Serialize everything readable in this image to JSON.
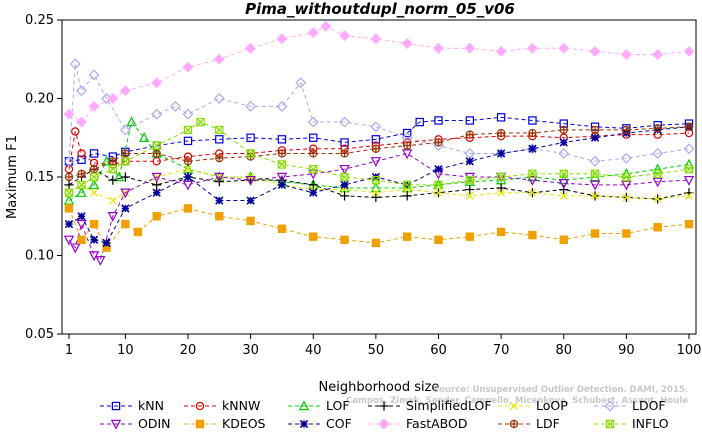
{
  "chart_data": {
    "type": "line",
    "title": "Pima_withoutdupl_norm_05_v06",
    "xlabel": "Neighborhood size",
    "ylabel": "Maximum F1",
    "xlim": [
      1,
      100
    ],
    "ylim": [
      0.05,
      0.25
    ],
    "xticks": [
      "1",
      "10",
      "20",
      "30",
      "40",
      "50",
      "60",
      "70",
      "80",
      "90",
      "100"
    ],
    "yticks": [
      "0.05",
      "0.10",
      "0.15",
      "0.20",
      "0.25"
    ],
    "legend_position": "bottom",
    "watermark": [
      "Source: Unsupervised Outlier Detection. DAMI, 2015.",
      "Campos, Zimek, Sander, Campello, Micenkova, Schubert, Assent, Houle"
    ],
    "series": [
      {
        "name": "kNN",
        "color": "#0000dd",
        "marker": "square",
        "dash": "4,3",
        "x": [
          1,
          3,
          5,
          8,
          10,
          15,
          20,
          25,
          30,
          35,
          40,
          45,
          50,
          55,
          57,
          60,
          65,
          70,
          75,
          80,
          85,
          90,
          95,
          100
        ],
        "y": [
          0.16,
          0.161,
          0.165,
          0.163,
          0.166,
          0.17,
          0.173,
          0.174,
          0.175,
          0.174,
          0.175,
          0.172,
          0.174,
          0.178,
          0.185,
          0.186,
          0.186,
          0.188,
          0.186,
          0.184,
          0.182,
          0.181,
          0.183,
          0.184
        ]
      },
      {
        "name": "kNNW",
        "color": "#dd0000",
        "marker": "circle",
        "dash": "4,3",
        "x": [
          1,
          2,
          3,
          5,
          8,
          10,
          15,
          20,
          25,
          30,
          35,
          40,
          45,
          50,
          55,
          60,
          65,
          70,
          75,
          80,
          85,
          90,
          95,
          100
        ],
        "y": [
          0.155,
          0.179,
          0.165,
          0.159,
          0.158,
          0.16,
          0.16,
          0.163,
          0.165,
          0.165,
          0.167,
          0.168,
          0.168,
          0.17,
          0.172,
          0.174,
          0.175,
          0.176,
          0.176,
          0.175,
          0.176,
          0.177,
          0.177,
          0.178
        ]
      },
      {
        "name": "LOF",
        "color": "#00cc00",
        "marker": "triangle",
        "dash": "4,3",
        "x": [
          1,
          3,
          5,
          7,
          9,
          11,
          13,
          15,
          20,
          25,
          30,
          35,
          40,
          45,
          50,
          55,
          60,
          65,
          70,
          75,
          80,
          85,
          90,
          95,
          100
        ],
        "y": [
          0.135,
          0.14,
          0.145,
          0.16,
          0.15,
          0.185,
          0.175,
          0.165,
          0.155,
          0.15,
          0.15,
          0.147,
          0.145,
          0.143,
          0.143,
          0.143,
          0.145,
          0.147,
          0.148,
          0.15,
          0.148,
          0.15,
          0.152,
          0.155,
          0.158
        ]
      },
      {
        "name": "SimplifiedLOF",
        "color": "#000000",
        "marker": "plus",
        "dash": "4,3",
        "x": [
          1,
          3,
          5,
          8,
          10,
          15,
          20,
          25,
          30,
          35,
          40,
          45,
          50,
          55,
          60,
          65,
          70,
          75,
          80,
          85,
          90,
          95,
          100
        ],
        "y": [
          0.145,
          0.15,
          0.155,
          0.148,
          0.15,
          0.145,
          0.15,
          0.147,
          0.148,
          0.148,
          0.145,
          0.138,
          0.137,
          0.138,
          0.14,
          0.142,
          0.143,
          0.14,
          0.142,
          0.138,
          0.137,
          0.136,
          0.14
        ]
      },
      {
        "name": "LoOP",
        "color": "#e6e600",
        "marker": "x",
        "dash": "4,3",
        "x": [
          1,
          3,
          5,
          8,
          10,
          15,
          20,
          25,
          30,
          35,
          40,
          45,
          50,
          55,
          60,
          65,
          70,
          75,
          80,
          85,
          90,
          95,
          100
        ],
        "y": [
          0.14,
          0.145,
          0.14,
          0.135,
          0.14,
          0.15,
          0.155,
          0.15,
          0.15,
          0.145,
          0.142,
          0.142,
          0.14,
          0.142,
          0.14,
          0.138,
          0.14,
          0.14,
          0.138,
          0.138,
          0.137,
          0.136,
          0.138
        ]
      },
      {
        "name": "LDOF",
        "color": "#aaaaee",
        "marker": "diamond",
        "dash": "4,3",
        "x": [
          1,
          2,
          3,
          5,
          7,
          10,
          15,
          18,
          20,
          25,
          30,
          35,
          38,
          40,
          45,
          50,
          55,
          60,
          65,
          70,
          75,
          80,
          85,
          90,
          95,
          100
        ],
        "y": [
          0.16,
          0.222,
          0.205,
          0.215,
          0.2,
          0.18,
          0.19,
          0.195,
          0.19,
          0.2,
          0.195,
          0.195,
          0.21,
          0.185,
          0.185,
          0.182,
          0.175,
          0.17,
          0.165,
          0.165,
          0.168,
          0.165,
          0.16,
          0.162,
          0.165,
          0.168
        ]
      },
      {
        "name": "ODIN",
        "color": "#9900cc",
        "marker": "triangle-down",
        "dash": "4,3",
        "x": [
          1,
          2,
          3,
          5,
          6,
          8,
          10,
          15,
          20,
          25,
          30,
          35,
          40,
          45,
          50,
          55,
          60,
          65,
          70,
          75,
          80,
          85,
          90,
          95,
          100
        ],
        "y": [
          0.11,
          0.105,
          0.12,
          0.1,
          0.097,
          0.125,
          0.14,
          0.15,
          0.145,
          0.15,
          0.148,
          0.15,
          0.152,
          0.155,
          0.16,
          0.165,
          0.152,
          0.15,
          0.15,
          0.148,
          0.146,
          0.145,
          0.145,
          0.147,
          0.148
        ]
      },
      {
        "name": "KDEOS",
        "color": "#f0a000",
        "marker": "square-filled",
        "dash": "4,3",
        "x": [
          1,
          3,
          5,
          7,
          10,
          12,
          15,
          20,
          25,
          30,
          35,
          40,
          45,
          50,
          55,
          60,
          65,
          70,
          75,
          80,
          85,
          90,
          95,
          100
        ],
        "y": [
          0.13,
          0.11,
          0.12,
          0.105,
          0.12,
          0.115,
          0.125,
          0.13,
          0.125,
          0.122,
          0.117,
          0.112,
          0.11,
          0.108,
          0.112,
          0.11,
          0.112,
          0.115,
          0.113,
          0.11,
          0.114,
          0.114,
          0.118,
          0.12
        ]
      },
      {
        "name": "COF",
        "color": "#000099",
        "marker": "star",
        "dash": "4,3",
        "x": [
          1,
          3,
          5,
          7,
          10,
          15,
          20,
          25,
          30,
          35,
          40,
          45,
          50,
          55,
          60,
          65,
          70,
          75,
          80,
          85,
          90,
          95,
          100
        ],
        "y": [
          0.12,
          0.125,
          0.11,
          0.108,
          0.13,
          0.14,
          0.15,
          0.135,
          0.135,
          0.145,
          0.14,
          0.145,
          0.15,
          0.145,
          0.155,
          0.16,
          0.165,
          0.168,
          0.172,
          0.175,
          0.178,
          0.18,
          0.182
        ]
      },
      {
        "name": "FastABOD",
        "color": "#ffaaff",
        "marker": "diamond-filled",
        "dash": "4,3",
        "x": [
          1,
          3,
          5,
          8,
          10,
          15,
          20,
          25,
          30,
          35,
          40,
          42,
          45,
          50,
          55,
          60,
          65,
          70,
          75,
          80,
          85,
          90,
          95,
          100
        ],
        "y": [
          0.19,
          0.185,
          0.195,
          0.2,
          0.205,
          0.21,
          0.22,
          0.225,
          0.232,
          0.238,
          0.242,
          0.246,
          0.24,
          0.238,
          0.235,
          0.232,
          0.232,
          0.23,
          0.232,
          0.232,
          0.23,
          0.228,
          0.228,
          0.23
        ]
      },
      {
        "name": "LDF",
        "color": "#993300",
        "marker": "circle-plus",
        "dash": "4,3",
        "x": [
          1,
          3,
          5,
          8,
          10,
          15,
          20,
          25,
          30,
          35,
          40,
          45,
          50,
          55,
          60,
          65,
          70,
          75,
          80,
          85,
          90,
          95,
          100
        ],
        "y": [
          0.15,
          0.152,
          0.155,
          0.16,
          0.165,
          0.165,
          0.16,
          0.162,
          0.163,
          0.165,
          0.165,
          0.165,
          0.168,
          0.17,
          0.172,
          0.177,
          0.178,
          0.178,
          0.18,
          0.18,
          0.18,
          0.181,
          0.182
        ]
      },
      {
        "name": "INFLO",
        "color": "#88dd00",
        "marker": "square-x",
        "dash": "4,3",
        "x": [
          1,
          3,
          5,
          8,
          10,
          15,
          20,
          22,
          25,
          30,
          35,
          40,
          45,
          50,
          55,
          60,
          65,
          70,
          75,
          80,
          85,
          90,
          95,
          100
        ],
        "y": [
          0.14,
          0.145,
          0.15,
          0.155,
          0.16,
          0.17,
          0.18,
          0.185,
          0.18,
          0.165,
          0.158,
          0.155,
          0.15,
          0.148,
          0.145,
          0.145,
          0.148,
          0.15,
          0.152,
          0.152,
          0.152,
          0.15,
          0.152,
          0.155
        ]
      }
    ]
  }
}
